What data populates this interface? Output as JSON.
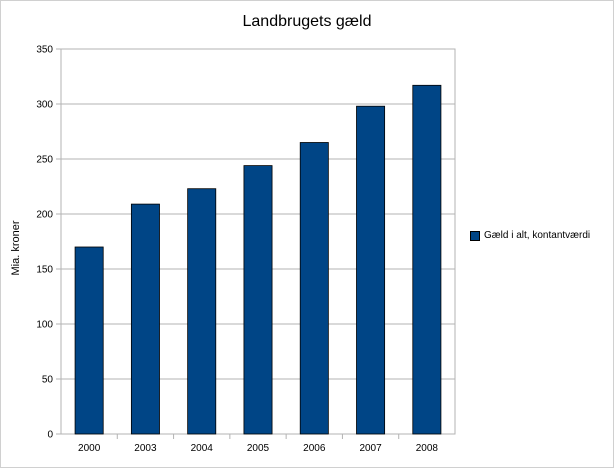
{
  "chart_data": {
    "type": "bar",
    "title": "Landbrugets gæld",
    "ylabel": "Mia. kroner",
    "xlabel": "",
    "categories": [
      "2000",
      "2003",
      "2004",
      "2005",
      "2006",
      "2007",
      "2008"
    ],
    "series": [
      {
        "name": "Gæld i alt, kontantværdi",
        "values": [
          170,
          209,
          223,
          244,
          265,
          298,
          317
        ],
        "color": "#004586"
      }
    ],
    "ylim": [
      0,
      350
    ],
    "yticks": [
      0,
      50,
      100,
      150,
      200,
      250,
      300,
      350
    ],
    "grid": true,
    "legend_position": "right"
  }
}
